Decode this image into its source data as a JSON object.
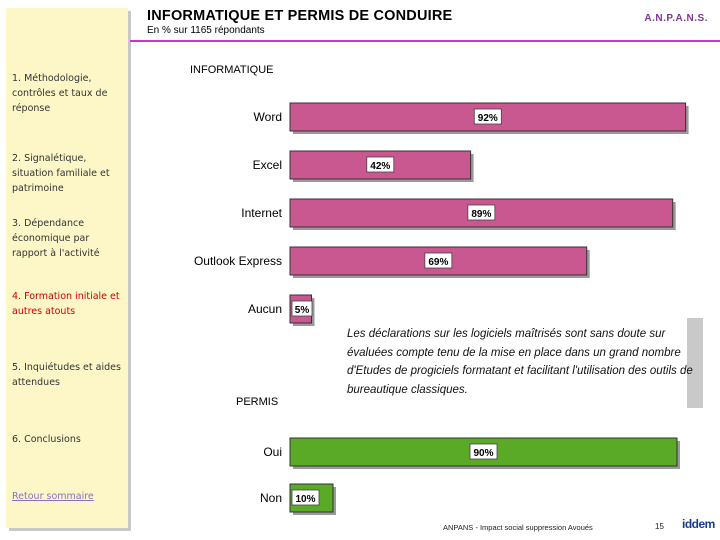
{
  "header": {
    "title": "INFORMATIQUE ET PERMIS DE CONDUIRE",
    "subtitle": "En % sur 1165 répondants",
    "brand": "A.N.P.A.N.S."
  },
  "sidebar": {
    "items": [
      {
        "label": "1. Méthodologie, contrôles et taux de réponse",
        "active": false
      },
      {
        "label": "2. Signalétique, situation familiale et patrimoine",
        "active": false
      },
      {
        "label": "3. Dépendance économique par rapport à l'activité",
        "active": false
      },
      {
        "label": "4. Formation initiale et autres atouts",
        "active": true
      },
      {
        "label": "5. Inquiétudes et aides attendues",
        "active": false
      },
      {
        "label": "6. Conclusions",
        "active": false
      }
    ],
    "return_link": "Retour sommaire"
  },
  "chart_data": [
    {
      "type": "bar",
      "orientation": "horizontal",
      "title": "INFORMATIQUE",
      "categories": [
        "Word",
        "Excel",
        "Internet",
        "Outlook Express",
        "Aucun"
      ],
      "values": [
        92,
        42,
        89,
        69,
        5
      ],
      "value_labels": [
        "92%",
        "42%",
        "89%",
        "69%",
        "5%"
      ],
      "color": "#c8588f",
      "xlim": [
        0,
        100
      ]
    },
    {
      "type": "bar",
      "orientation": "horizontal",
      "title": "PERMIS",
      "categories": [
        "Oui",
        "Non"
      ],
      "values": [
        90,
        10
      ],
      "value_labels": [
        "90%",
        "10%"
      ],
      "color": "#5aaa28",
      "xlim": [
        0,
        100
      ]
    }
  ],
  "note": "Les déclarations sur les logiciels maîtrisés sont sans doute sur évaluées compte tenu de la mise en place dans un grand nombre d'Etudes de progiciels formatant et facilitant l'utilisation des outils de bureautique classiques.",
  "footer": {
    "text": "ANPANS - Impact social suppression Avoués",
    "page": "15",
    "logo": "iddem"
  }
}
